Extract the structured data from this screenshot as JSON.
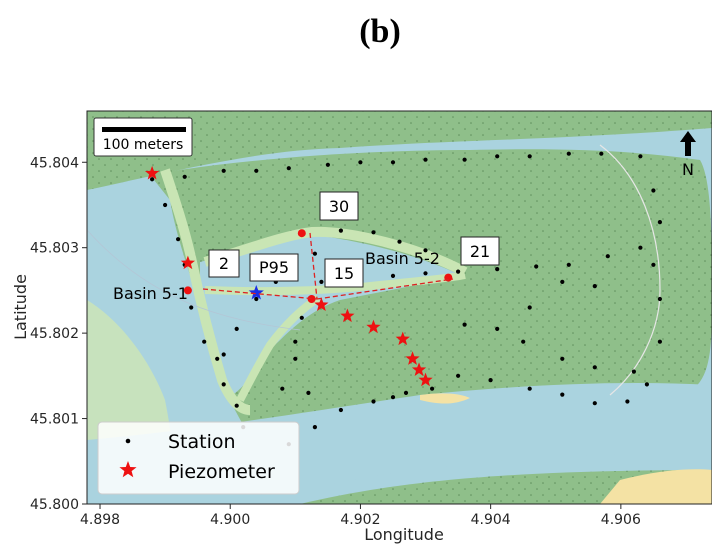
{
  "panel_label": "(b)",
  "colors": {
    "water": "#aad3df",
    "land": "#8fbf8a",
    "land_light": "#c7e2bd",
    "dyke": "#c9e5b4",
    "sand": "#f4e2a4",
    "station": "#000000",
    "piezometer": "#ee1111",
    "p95": "#1a2ee6",
    "dash_line": "#dd2222"
  },
  "chart_data": {
    "type": "scatter",
    "title": "",
    "xlabel": "Longitude",
    "ylabel": "Latitude",
    "xlim": [
      4.8978,
      4.9074
    ],
    "ylim": [
      45.8,
      45.8046
    ],
    "xticks": [
      4.898,
      4.9,
      4.902,
      4.904,
      4.906
    ],
    "xtick_labels": [
      "4.898",
      "4.900",
      "4.902",
      "4.904",
      "4.906"
    ],
    "yticks": [
      45.8,
      45.801,
      45.802,
      45.803,
      45.804
    ],
    "ytick_labels": [
      "45.800",
      "45.801",
      "45.802",
      "45.803",
      "45.804"
    ],
    "grid": false,
    "legend_position": "bottom-left",
    "series": [
      {
        "name": "Station",
        "marker": "dot",
        "points": [
          [
            4.8988,
            45.8038
          ],
          [
            4.8993,
            45.80383
          ],
          [
            4.8999,
            45.8039
          ],
          [
            4.9004,
            45.8039
          ],
          [
            4.9009,
            45.80393
          ],
          [
            4.9015,
            45.80397
          ],
          [
            4.902,
            45.804
          ],
          [
            4.9025,
            45.804
          ],
          [
            4.903,
            45.80403
          ],
          [
            4.9036,
            45.80403
          ],
          [
            4.9041,
            45.80407
          ],
          [
            4.9046,
            45.80407
          ],
          [
            4.9052,
            45.8041
          ],
          [
            4.9057,
            45.8041
          ],
          [
            4.9063,
            45.80407
          ],
          [
            4.9065,
            45.80367
          ],
          [
            4.9066,
            45.8033
          ],
          [
            4.9065,
            45.8028
          ],
          [
            4.9066,
            45.8024
          ],
          [
            4.9066,
            45.8019
          ],
          [
            4.9064,
            45.8014
          ],
          [
            4.899,
            45.8035
          ],
          [
            4.8992,
            45.8031
          ],
          [
            4.8993,
            45.8028
          ],
          [
            4.8994,
            45.8023
          ],
          [
            4.8996,
            45.8019
          ],
          [
            4.8998,
            45.8017
          ],
          [
            4.8999,
            45.8014
          ],
          [
            4.9001,
            45.80115
          ],
          [
            4.9002,
            45.8009
          ],
          [
            4.9005,
            45.8027
          ],
          [
            4.9009,
            45.80283
          ],
          [
            4.9013,
            45.80293
          ],
          [
            4.9017,
            45.8032
          ],
          [
            4.9022,
            45.80318
          ],
          [
            4.9026,
            45.80307
          ],
          [
            4.903,
            45.80297
          ],
          [
            4.9014,
            45.8026
          ],
          [
            4.902,
            45.8026
          ],
          [
            4.9025,
            45.80267
          ],
          [
            4.903,
            45.8027
          ],
          [
            4.9035,
            45.80272
          ],
          [
            4.9041,
            45.80275
          ],
          [
            4.9047,
            45.80278
          ],
          [
            4.9052,
            45.8028
          ],
          [
            4.9058,
            45.8029
          ],
          [
            4.9063,
            45.803
          ],
          [
            4.8999,
            45.80175
          ],
          [
            4.9001,
            45.80205
          ],
          [
            4.9004,
            45.8024
          ],
          [
            4.9007,
            45.8026
          ],
          [
            4.901,
            45.8019
          ],
          [
            4.9011,
            45.80218
          ],
          [
            4.901,
            45.8017
          ],
          [
            4.9008,
            45.80135
          ],
          [
            4.9012,
            45.8013
          ],
          [
            4.9036,
            45.8021
          ],
          [
            4.9041,
            45.80205
          ],
          [
            4.9046,
            45.8023
          ],
          [
            4.9051,
            45.8026
          ],
          [
            4.9056,
            45.80255
          ],
          [
            4.9045,
            45.8019
          ],
          [
            4.9051,
            45.8017
          ],
          [
            4.9056,
            45.8016
          ],
          [
            4.9062,
            45.80155
          ],
          [
            4.9035,
            45.8015
          ],
          [
            4.904,
            45.80145
          ],
          [
            4.9046,
            45.80135
          ],
          [
            4.9051,
            45.80128
          ],
          [
            4.9056,
            45.80118
          ],
          [
            4.9061,
            45.8012
          ],
          [
            4.9027,
            45.8013
          ],
          [
            4.9022,
            45.8012
          ],
          [
            4.9017,
            45.8011
          ],
          [
            4.9013,
            45.8009
          ],
          [
            4.9009,
            45.8007
          ],
          [
            4.9031,
            45.80135
          ],
          [
            4.9025,
            45.80125
          ]
        ]
      },
      {
        "name": "Piezometer",
        "marker": "star",
        "points": [
          [
            4.8988,
            45.80387
          ],
          [
            4.89935,
            45.80282
          ],
          [
            4.9014,
            45.80233
          ],
          [
            4.9018,
            45.8022
          ],
          [
            4.9022,
            45.80207
          ],
          [
            4.90265,
            45.80193
          ],
          [
            4.9028,
            45.8017
          ],
          [
            4.9029,
            45.80157
          ],
          [
            4.903,
            45.80145
          ]
        ]
      },
      {
        "name": "P95",
        "marker": "star",
        "points": [
          [
            4.9004,
            45.80247
          ]
        ]
      }
    ],
    "site_markers": [
      {
        "label": "2",
        "x": 4.89935,
        "y": 45.8025
      },
      {
        "label": "30",
        "x": 4.9011,
        "y": 45.80317
      },
      {
        "label": "15",
        "x": 4.90125,
        "y": 45.8024
      },
      {
        "label": "21",
        "x": 4.90335,
        "y": 45.80265
      }
    ],
    "callouts": [
      "2",
      "P95",
      "30",
      "15",
      "21"
    ],
    "annotations": [
      "Basin 5-1",
      "Basin 5-2"
    ],
    "scale_bar": "100 meters",
    "north_arrow": "N"
  }
}
